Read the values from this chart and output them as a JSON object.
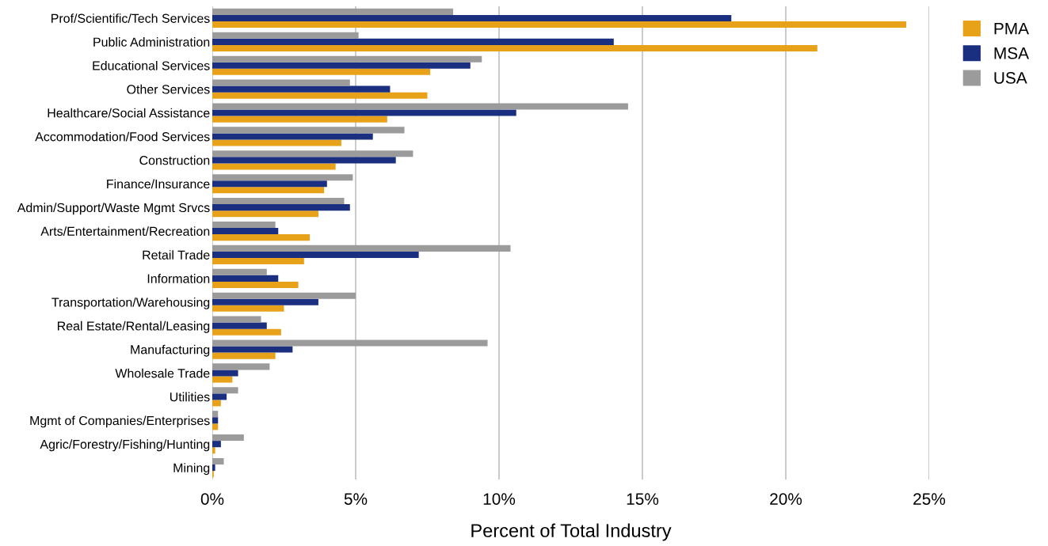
{
  "chart_data": {
    "type": "bar",
    "orientation": "horizontal",
    "xlabel": "Percent of Total Industry",
    "categories": [
      "Prof/Scientific/Tech Services",
      "Public Administration",
      "Educational Services",
      "Other Services",
      "Healthcare/Social Assistance",
      "Accommodation/Food Services",
      "Construction",
      "Finance/Insurance",
      "Admin/Support/Waste Mgmt Srvcs",
      "Arts/Entertainment/Recreation",
      "Retail Trade",
      "Information",
      "Transportation/Warehousing",
      "Real Estate/Rental/Leasing",
      "Manufacturing",
      "Wholesale Trade",
      "Utilities",
      "Mgmt of Companies/Enterprises",
      "Agric/Forestry/Fishing/Hunting",
      "Mining"
    ],
    "series": [
      {
        "name": "PMA",
        "color": "#e8a219",
        "values": [
          24.2,
          21.1,
          7.6,
          7.5,
          6.1,
          4.5,
          4.3,
          3.9,
          3.7,
          3.4,
          3.2,
          3.0,
          2.5,
          2.4,
          2.2,
          0.7,
          0.3,
          0.2,
          0.1,
          0.05
        ]
      },
      {
        "name": "MSA",
        "color": "#1b2f80",
        "values": [
          18.1,
          14.0,
          9.0,
          6.2,
          10.6,
          5.6,
          6.4,
          4.0,
          4.8,
          2.3,
          7.2,
          2.3,
          3.7,
          1.9,
          2.8,
          0.9,
          0.5,
          0.2,
          0.3,
          0.1
        ]
      },
      {
        "name": "USA",
        "color": "#9b9b9b",
        "values": [
          8.4,
          5.1,
          9.4,
          4.8,
          14.5,
          6.7,
          7.0,
          4.9,
          4.6,
          2.2,
          10.4,
          1.9,
          5.0,
          1.7,
          9.6,
          2.0,
          0.9,
          0.2,
          1.1,
          0.4
        ]
      }
    ],
    "xlim": [
      0,
      25
    ],
    "xticks": [
      {
        "value": 0,
        "label": "0%"
      },
      {
        "value": 5,
        "label": "5%"
      },
      {
        "value": 10,
        "label": "10%"
      },
      {
        "value": 15,
        "label": "15%"
      },
      {
        "value": 20,
        "label": "20%"
      },
      {
        "value": 25,
        "label": "25%"
      }
    ],
    "grid": "x",
    "legend": "top right"
  }
}
